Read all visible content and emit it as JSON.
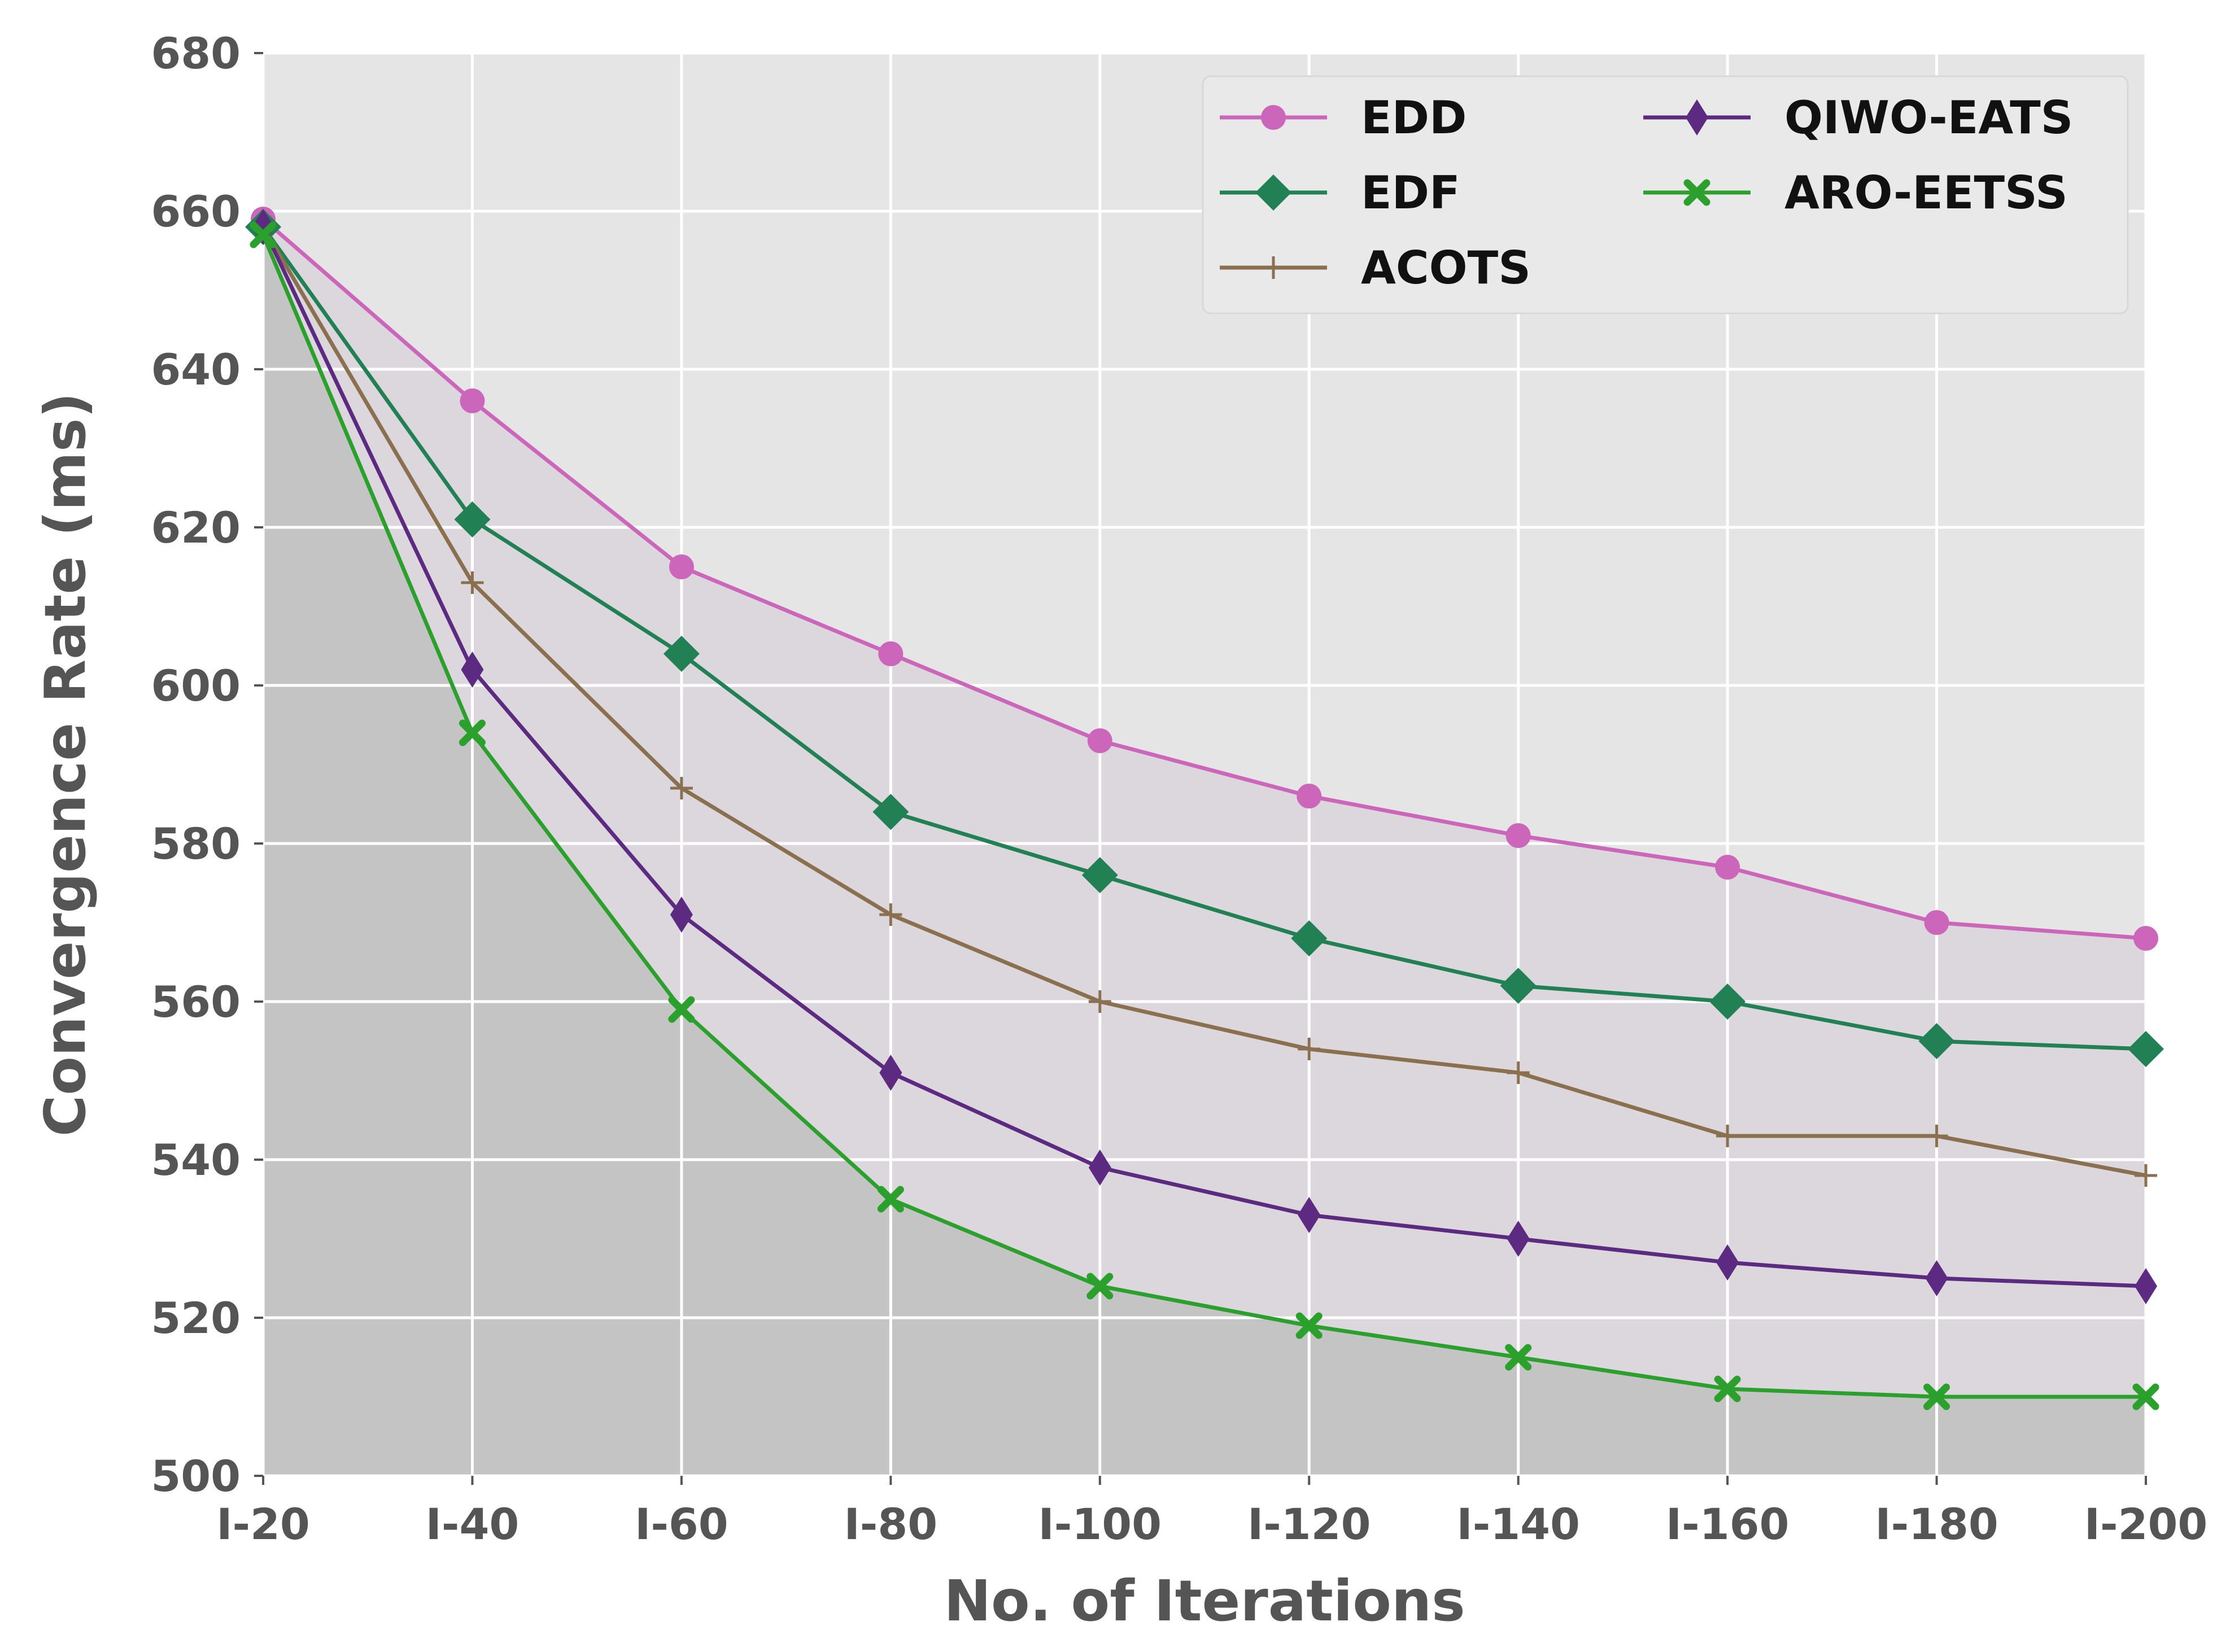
{
  "chart_data": {
    "type": "line",
    "title": "",
    "xlabel": "No. of Iterations",
    "ylabel": "Convergence Rate (ms)",
    "categories": [
      "I-20",
      "I-40",
      "I-60",
      "I-80",
      "I-100",
      "I-120",
      "I-140",
      "I-160",
      "I-180",
      "I-200"
    ],
    "ylim": [
      500,
      680
    ],
    "yticks": [
      500,
      520,
      540,
      560,
      580,
      600,
      620,
      640,
      660,
      680
    ],
    "grid": true,
    "legend_position": "top-right",
    "series": [
      {
        "name": "EDD",
        "color": "#cc66bb",
        "marker": "circle",
        "values": [
          659,
          636,
          615,
          604,
          593,
          586,
          581,
          577,
          570,
          568
        ]
      },
      {
        "name": "EDF",
        "color": "#228055",
        "marker": "diamond",
        "values": [
          658,
          621,
          604,
          584,
          576,
          568,
          562,
          560,
          555,
          554
        ]
      },
      {
        "name": "ACOTS",
        "color": "#8b7050",
        "marker": "plus",
        "values": [
          658,
          613,
          587,
          571,
          560,
          554,
          551,
          543,
          543,
          538
        ]
      },
      {
        "name": "QIWO-EATS",
        "color": "#5c2a80",
        "marker": "thin-diamond",
        "values": [
          658,
          602,
          571,
          551,
          539,
          533,
          530,
          527,
          525,
          524
        ]
      },
      {
        "name": "ARO-EETSS",
        "color": "#2ca02c",
        "marker": "x",
        "values": [
          657,
          594,
          559,
          535,
          524,
          519,
          515,
          511,
          510,
          510
        ]
      }
    ]
  }
}
